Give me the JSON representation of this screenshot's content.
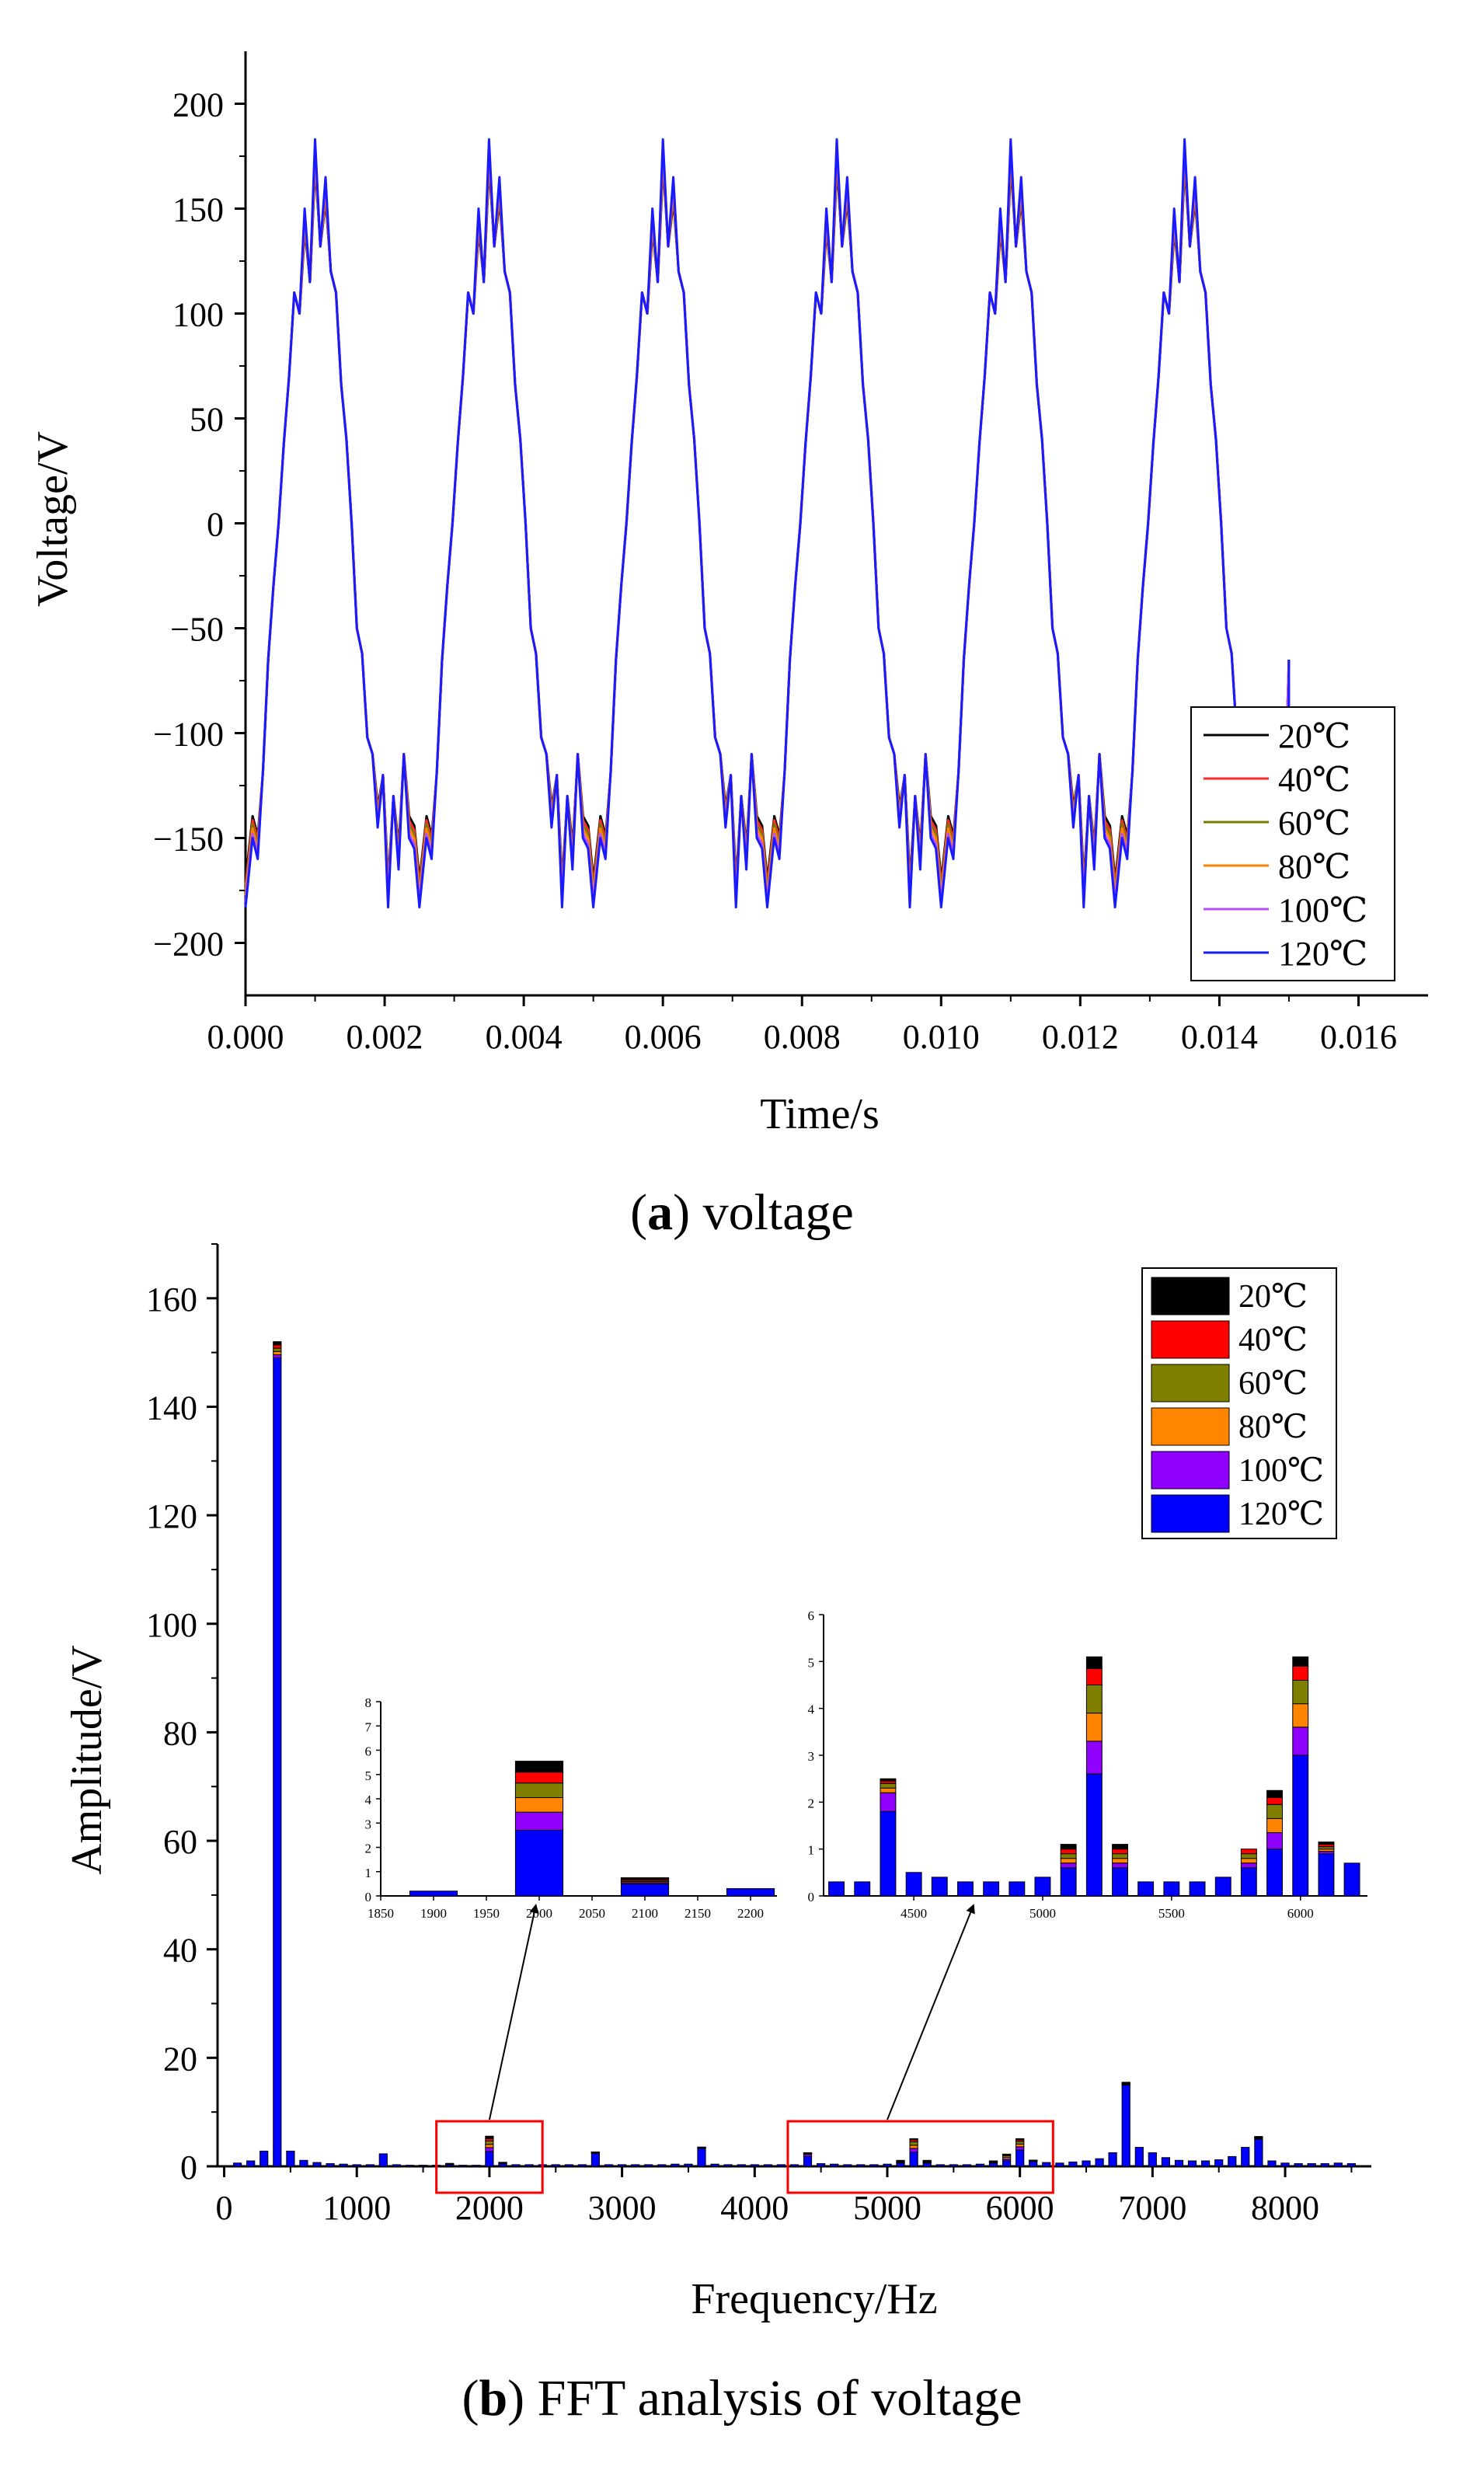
{
  "chart_data": [
    {
      "type": "line",
      "title": "voltage",
      "caption_letter": "a",
      "xlabel": "Time/s",
      "ylabel": "Voltage/V",
      "xlim": [
        0,
        0.017
      ],
      "ylim": [
        -225,
        225
      ],
      "xticks": [
        0.0,
        0.002,
        0.004,
        0.006,
        0.008,
        0.01,
        0.012,
        0.014,
        0.016
      ],
      "xtick_labels": [
        "0.000",
        "0.002",
        "0.004",
        "0.006",
        "0.008",
        "0.010",
        "0.012",
        "0.014",
        "0.016"
      ],
      "yticks": [
        -200,
        -150,
        -100,
        -50,
        0,
        50,
        100,
        150,
        200
      ],
      "ytick_labels": [
        "−200",
        "−150",
        "−100",
        "−50",
        "0",
        "50",
        "100",
        "150",
        "200"
      ],
      "legend_position": "bottom-right",
      "period_s": 0.0025,
      "waveform_template": {
        "phase": [
          0.0,
          0.04,
          0.07,
          0.1,
          0.13,
          0.16,
          0.19,
          0.22,
          0.25,
          0.28,
          0.31,
          0.34,
          0.37,
          0.4,
          0.43,
          0.46,
          0.49,
          0.52,
          0.55,
          0.58,
          0.61,
          0.64,
          0.67,
          0.7,
          0.73,
          0.76,
          0.79,
          0.82,
          0.85,
          0.88,
          0.91,
          0.94,
          0.97,
          1.0
        ],
        "value": [
          -183,
          -150,
          -160,
          -118,
          -65,
          -30,
          0,
          38,
          70,
          110,
          100,
          150,
          115,
          183,
          132,
          165,
          120,
          110,
          66,
          40,
          0,
          -50,
          -62,
          -102,
          -110,
          -145,
          -120,
          -183,
          -130,
          -165,
          -110,
          -150,
          -155,
          -183
        ]
      },
      "series": [
        {
          "name": "20℃",
          "color": "#000000",
          "peak_scale": 0.92,
          "phase_shift": 0.004
        },
        {
          "name": "40℃",
          "color": "#ff2a2a",
          "peak_scale": 0.935,
          "phase_shift": 0.0035
        },
        {
          "name": "60℃",
          "color": "#7a7a00",
          "peak_scale": 0.95,
          "phase_shift": 0.003
        },
        {
          "name": "80℃",
          "color": "#ff8000",
          "peak_scale": 0.965,
          "phase_shift": 0.002
        },
        {
          "name": "100℃",
          "color": "#b84dff",
          "peak_scale": 0.985,
          "phase_shift": 0.001
        },
        {
          "name": "120℃",
          "color": "#1a1aff",
          "peak_scale": 1.0,
          "phase_shift": 0.0
        }
      ]
    },
    {
      "type": "bar",
      "title": "FFT analysis of voltage",
      "caption_letter": "b",
      "xlabel": "Frequency/Hz",
      "ylabel": "Amplitude/V",
      "xlim": [
        -50,
        8650
      ],
      "ylim": [
        0,
        170
      ],
      "xticks": [
        0,
        1000,
        2000,
        3000,
        4000,
        5000,
        6000,
        7000,
        8000
      ],
      "xtick_labels": [
        "0",
        "1000",
        "2000",
        "3000",
        "4000",
        "5000",
        "6000",
        "7000",
        "8000"
      ],
      "yticks": [
        0,
        20,
        40,
        60,
        80,
        100,
        120,
        140,
        160
      ],
      "ytick_labels": [
        "0",
        "20",
        "40",
        "60",
        "80",
        "100",
        "120",
        "140",
        "160"
      ],
      "legend_position": "top-right",
      "bar_width_hz": 60,
      "x": [
        100,
        200,
        300,
        400,
        500,
        600,
        700,
        800,
        900,
        1000,
        1100,
        1200,
        1300,
        1400,
        1500,
        1600,
        1700,
        1800,
        1900,
        2000,
        2100,
        2200,
        2300,
        2400,
        2500,
        2600,
        2700,
        2800,
        2900,
        3000,
        3100,
        3200,
        3300,
        3400,
        3500,
        3600,
        3700,
        3800,
        3900,
        4000,
        4100,
        4200,
        4300,
        4400,
        4500,
        4600,
        4700,
        4800,
        4900,
        5000,
        5100,
        5200,
        5300,
        5400,
        5500,
        5600,
        5700,
        5800,
        5900,
        6000,
        6100,
        6200,
        6300,
        6400,
        6500,
        6600,
        6700,
        6800,
        6900,
        7000,
        7100,
        7200,
        7300,
        7400,
        7500,
        7600,
        7700,
        7800,
        7900,
        8000,
        8100,
        8200,
        8300,
        8400,
        8500
      ],
      "series": [
        {
          "name": "120℃",
          "color": "#0000ff",
          "values": [
            0.6,
            1.0,
            2.8,
            149.0,
            2.8,
            1.1,
            0.7,
            0.5,
            0.4,
            0.3,
            0.3,
            2.3,
            0.3,
            0.2,
            0.2,
            0.2,
            0.3,
            0.2,
            0.2,
            2.7,
            0.5,
            0.3,
            0.3,
            0.3,
            0.3,
            0.3,
            0.3,
            2.4,
            0.3,
            0.3,
            0.3,
            0.3,
            0.3,
            0.4,
            0.4,
            3.3,
            0.4,
            0.3,
            0.3,
            0.3,
            0.3,
            0.3,
            0.3,
            1.8,
            0.5,
            0.4,
            0.3,
            0.3,
            0.3,
            0.4,
            0.6,
            2.6,
            0.6,
            0.3,
            0.3,
            0.3,
            0.4,
            0.6,
            1.0,
            3.0,
            0.9,
            0.7,
            0.6,
            0.8,
            1.0,
            1.4,
            2.5,
            15.0,
            3.5,
            2.5,
            1.6,
            1.1,
            1.0,
            1.0,
            1.2,
            1.8,
            3.5,
            5.0,
            1.0,
            0.6,
            0.5,
            0.5,
            0.5,
            0.6,
            0.5
          ]
        },
        {
          "name": "100℃",
          "color": "#8f00ff",
          "values": [
            0,
            0,
            0,
            0.6,
            0,
            0,
            0,
            0,
            0,
            0,
            0,
            0,
            0,
            0,
            0,
            0,
            0.05,
            0,
            0,
            0.75,
            0.05,
            0,
            0,
            0,
            0,
            0,
            0,
            0.05,
            0,
            0,
            0,
            0,
            0,
            0,
            0,
            0.05,
            0,
            0,
            0,
            0,
            0,
            0,
            0,
            0.4,
            0,
            0,
            0,
            0,
            0,
            0,
            0.1,
            0.7,
            0.1,
            0,
            0,
            0,
            0,
            0.1,
            0.35,
            0.6,
            0.05,
            0,
            0,
            0,
            0,
            0,
            0,
            0.1,
            0,
            0,
            0,
            0,
            0,
            0,
            0,
            0,
            0,
            0.1,
            0,
            0,
            0,
            0,
            0,
            0,
            0
          ]
        },
        {
          "name": "80℃",
          "color": "#ff8400",
          "values": [
            0,
            0,
            0,
            0.6,
            0,
            0,
            0,
            0,
            0,
            0,
            0,
            0,
            0,
            0,
            0,
            0,
            0.05,
            0,
            0,
            0.6,
            0.05,
            0,
            0,
            0,
            0,
            0,
            0,
            0.05,
            0,
            0,
            0,
            0,
            0,
            0,
            0,
            0.05,
            0,
            0,
            0,
            0,
            0,
            0,
            0,
            0.1,
            0,
            0,
            0,
            0,
            0,
            0,
            0.1,
            0.6,
            0.1,
            0,
            0,
            0,
            0,
            0.1,
            0.3,
            0.5,
            0.05,
            0,
            0,
            0,
            0,
            0,
            0,
            0.1,
            0,
            0,
            0,
            0,
            0,
            0,
            0,
            0,
            0,
            0.1,
            0,
            0,
            0,
            0,
            0,
            0,
            0
          ]
        },
        {
          "name": "60℃",
          "color": "#7f7f00",
          "values": [
            0,
            0,
            0,
            0.6,
            0,
            0,
            0,
            0,
            0,
            0,
            0,
            0,
            0,
            0,
            0,
            0,
            0.05,
            0,
            0,
            0.6,
            0.05,
            0,
            0,
            0,
            0,
            0,
            0,
            0.05,
            0,
            0,
            0,
            0,
            0,
            0,
            0,
            0.05,
            0,
            0,
            0,
            0,
            0,
            0,
            0,
            0.1,
            0,
            0,
            0,
            0,
            0,
            0,
            0.1,
            0.6,
            0.1,
            0,
            0,
            0,
            0,
            0.1,
            0.3,
            0.5,
            0.05,
            0,
            0,
            0,
            0,
            0,
            0,
            0.1,
            0,
            0,
            0,
            0,
            0,
            0,
            0,
            0,
            0,
            0.1,
            0,
            0,
            0,
            0,
            0,
            0,
            0
          ]
        },
        {
          "name": "40℃",
          "color": "#ff0000",
          "values": [
            0,
            0,
            0,
            0.6,
            0,
            0,
            0,
            0,
            0,
            0,
            0,
            0,
            0,
            0,
            0,
            0,
            0.05,
            0,
            0,
            0.45,
            0.05,
            0,
            0,
            0,
            0,
            0,
            0,
            0.05,
            0,
            0,
            0,
            0,
            0,
            0,
            0,
            0.05,
            0,
            0,
            0,
            0,
            0,
            0,
            0,
            0.05,
            0,
            0,
            0,
            0,
            0,
            0,
            0.1,
            0.35,
            0.1,
            0,
            0,
            0,
            0,
            0.1,
            0.15,
            0.3,
            0.05,
            0,
            0,
            0,
            0,
            0,
            0,
            0.1,
            0,
            0,
            0,
            0,
            0,
            0,
            0,
            0,
            0,
            0.1,
            0,
            0,
            0,
            0,
            0,
            0,
            0
          ]
        },
        {
          "name": "20℃",
          "color": "#000000",
          "values": [
            0,
            0,
            0,
            0.6,
            0,
            0,
            0,
            0,
            0,
            0,
            0,
            0,
            0,
            0,
            0,
            0,
            0.05,
            0,
            0,
            0.45,
            0.05,
            0,
            0,
            0,
            0,
            0,
            0,
            0.05,
            0,
            0,
            0,
            0,
            0,
            0,
            0,
            0.05,
            0,
            0,
            0,
            0,
            0,
            0,
            0,
            0.05,
            0,
            0,
            0,
            0,
            0,
            0,
            0.1,
            0.25,
            0.1,
            0,
            0,
            0,
            0,
            0,
            0.15,
            0.2,
            0.05,
            0,
            0,
            0,
            0,
            0,
            0,
            0.1,
            0,
            0,
            0,
            0,
            0,
            0,
            0,
            0,
            0,
            0.1,
            0,
            0,
            0,
            0,
            0,
            0,
            0
          ]
        }
      ],
      "legend_order": [
        "20℃",
        "40℃",
        "60℃",
        "80℃",
        "100℃",
        "120℃"
      ],
      "inset_zooms": [
        {
          "name": "inset-left",
          "x_range": [
            1850,
            2225
          ],
          "y_range": [
            0,
            8
          ],
          "xticks": [
            1850,
            1900,
            1950,
            2000,
            2050,
            2100,
            2150,
            2200
          ],
          "xtick_labels": [
            "1850",
            "1900",
            "1950",
            "2000",
            "2050",
            "2100",
            "2150",
            "2200"
          ],
          "yticks": [
            0,
            1,
            2,
            3,
            4,
            5,
            6,
            7,
            8
          ],
          "ytick_labels": [
            "0",
            "1",
            "2",
            "3",
            "4",
            "5",
            "6",
            "7",
            "8"
          ],
          "source_range_hz": [
            1600,
            2400
          ]
        },
        {
          "name": "inset-right",
          "x_range": [
            4150,
            6260
          ],
          "y_range": [
            0,
            6
          ],
          "xticks": [
            4500,
            5000,
            5500,
            6000
          ],
          "xtick_labels": [
            "4500",
            "5000",
            "5500",
            "6000"
          ],
          "yticks": [
            0,
            1,
            2,
            3,
            4,
            5,
            6
          ],
          "ytick_labels": [
            "0",
            "1",
            "2",
            "3",
            "4",
            "5",
            "6"
          ],
          "source_range_hz": [
            4250,
            6250
          ]
        }
      ]
    }
  ],
  "captions": {
    "a": {
      "letter": "a",
      "text": " voltage"
    },
    "b": {
      "letter": "b",
      "text": " FFT analysis of voltage"
    }
  }
}
